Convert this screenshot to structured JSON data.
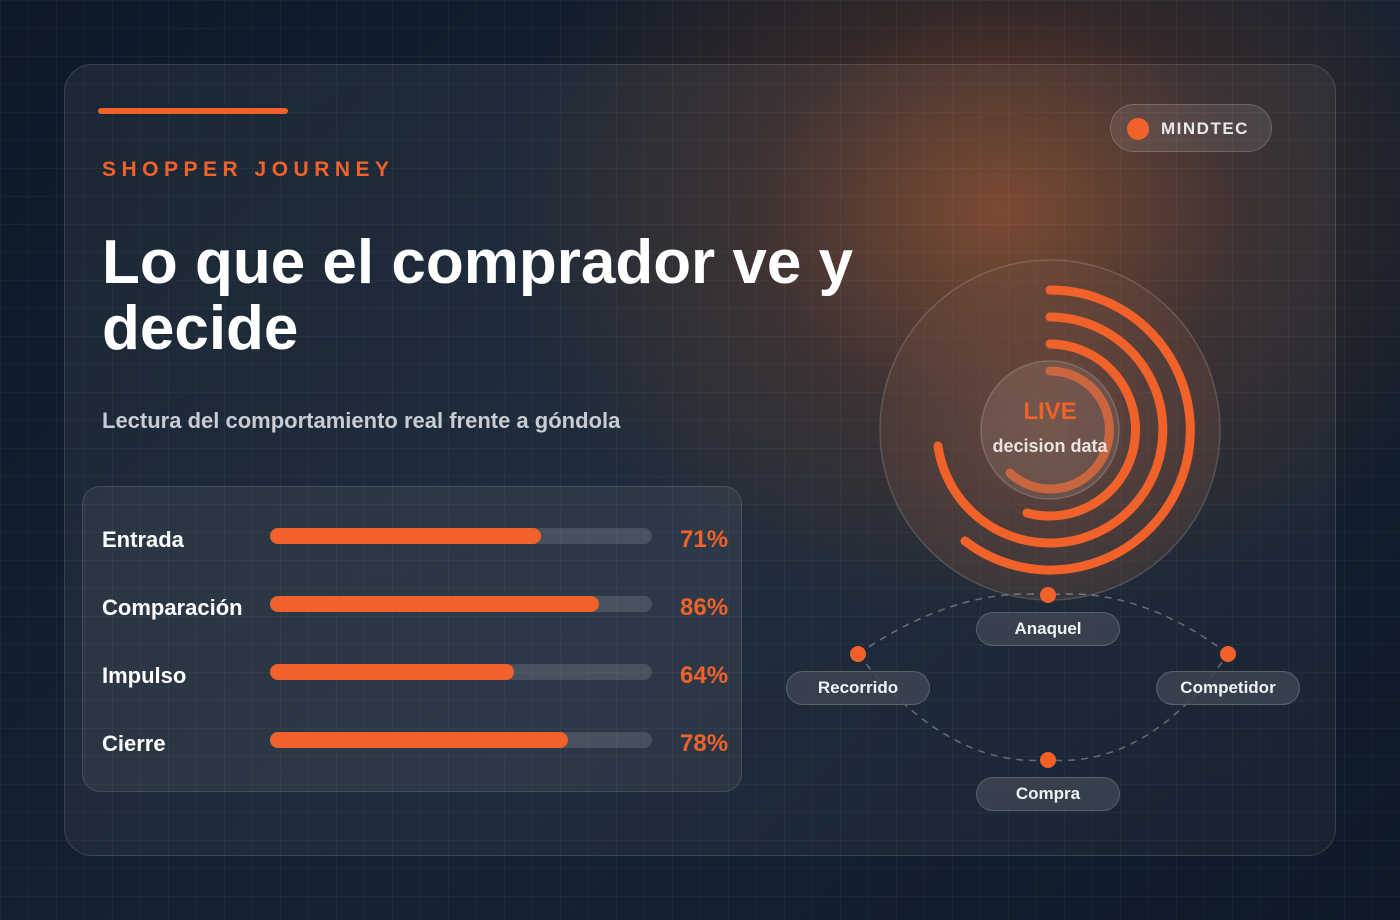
{
  "header": {
    "eyebrow": "SHOPPER JOURNEY",
    "title": "Lo que el comprador ve y decide",
    "subtitle": "Lectura del comportamiento real frente a góndola"
  },
  "brand": {
    "label": "MINDTEC",
    "dot_color": "#f0622a"
  },
  "metrics": [
    {
      "label": "Entrada",
      "value": 71,
      "display": "71%"
    },
    {
      "label": "Comparación",
      "value": 86,
      "display": "86%"
    },
    {
      "label": "Impulso",
      "value": 64,
      "display": "64%"
    },
    {
      "label": "Cierre",
      "value": 78,
      "display": "78%"
    }
  ],
  "radial": {
    "center_title": "LIVE",
    "center_subtitle": "decision data"
  },
  "journey_nodes": {
    "anaquel": "Anaquel",
    "recorrido": "Recorrido",
    "competidor": "Competidor",
    "compra": "Compra"
  },
  "colors": {
    "accent": "#f0622a",
    "track": "#3a4250",
    "background": "#132232"
  }
}
